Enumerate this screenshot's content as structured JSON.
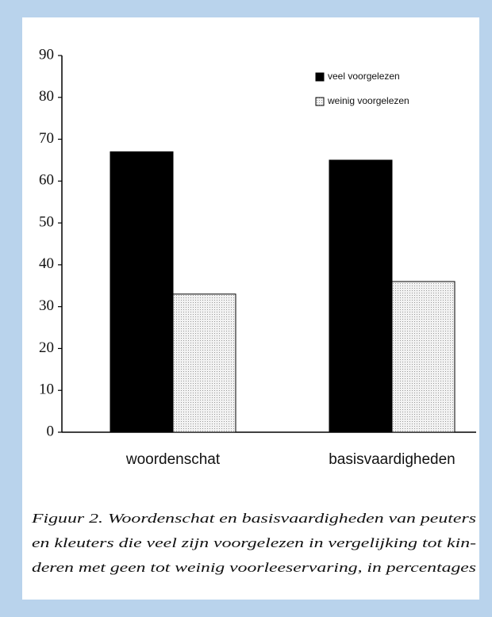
{
  "chart_data": {
    "type": "bar",
    "categories": [
      "woordenschat",
      "basisvaardigheden"
    ],
    "series": [
      {
        "name": "veel voorgelezen",
        "color": "#000000",
        "values": [
          67,
          65
        ]
      },
      {
        "name": "weinig voorgelezen",
        "color": "#e4e4e4",
        "values": [
          33,
          36
        ]
      }
    ],
    "ylim": [
      0,
      90
    ],
    "yticks": [
      0,
      10,
      20,
      30,
      40,
      50,
      60,
      70,
      80,
      90
    ],
    "legend": "top-right",
    "caption": [
      "Figuur 2. Woordenschat en basisvaardigheden van peuters",
      "en kleuters die veel zijn voorgelezen in vergelijking tot kin-",
      "deren met geen tot weinig voorleeservaring, in percentages"
    ]
  }
}
